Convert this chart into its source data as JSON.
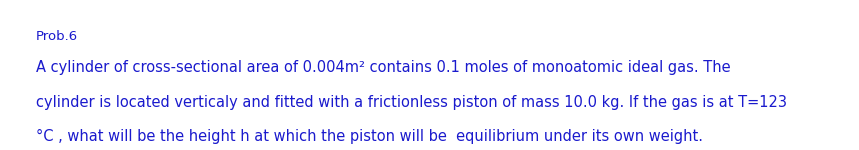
{
  "title": "Prob.6",
  "line1": "A cylinder of cross-sectional area of 0.004m² contains 0.1 moles of monoatomic ideal gas. The",
  "line2": "cylinder is located verticaly and fitted with a frictionless piston of mass 10.0 kg. If the gas is at T=123",
  "line3": "°C , what will be the height h at which the piston will be  equilibrium under its own weight.",
  "text_color": "#1a1acd",
  "title_color": "#1a1acd",
  "background_color": "#ffffff",
  "title_fontsize": 9.5,
  "body_fontsize": 10.5,
  "figwidth": 8.59,
  "figheight": 1.5,
  "dpi": 100
}
